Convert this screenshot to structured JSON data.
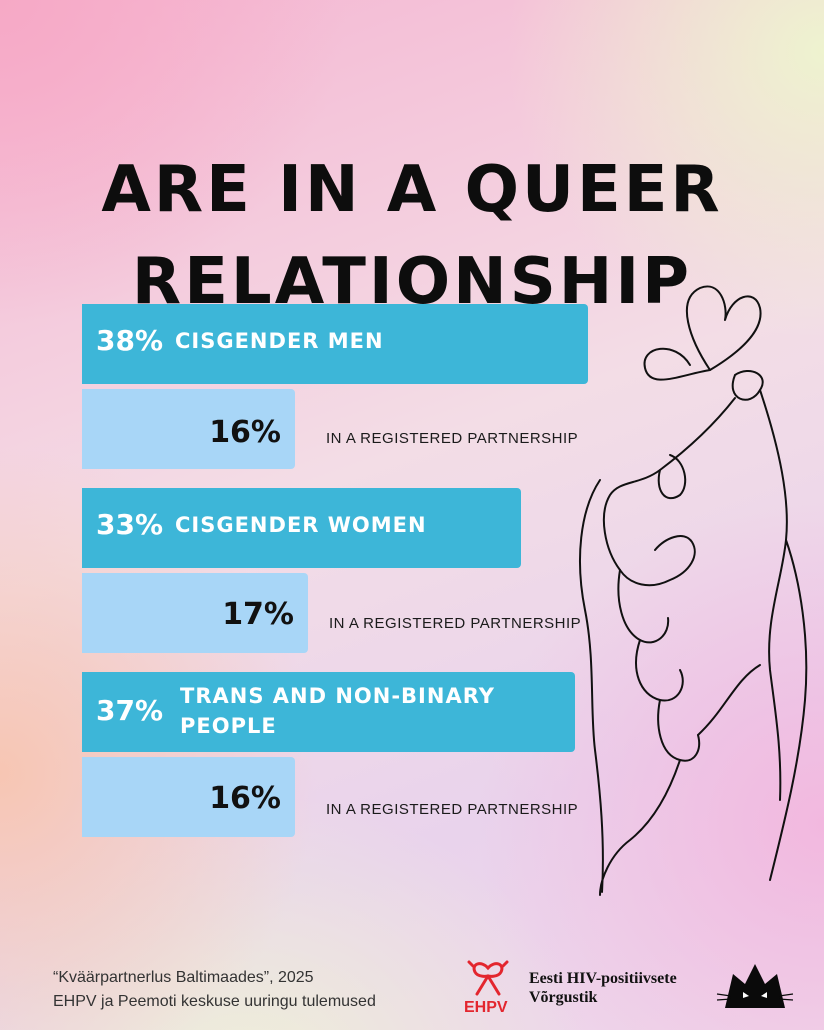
{
  "title_lines": [
    "ARE IN A QUEER",
    "RELATIONSHIP"
  ],
  "chart_data": {
    "type": "bar",
    "title": "ARE IN A QUEER RELATIONSHIP",
    "unit": "%",
    "categories": [
      "CISGENDER MEN",
      "CISGENDER WOMEN",
      "TRANS AND NON-BINARY PEOPLE"
    ],
    "series": [
      {
        "name": "",
        "values": [
          38,
          33,
          37
        ]
      },
      {
        "name": "IN A REGISTERED PARTNERSHIP",
        "values": [
          16,
          17,
          16
        ]
      }
    ],
    "groups": [
      {
        "pct": "38%",
        "label_lines": [
          "CISGENDER MEN"
        ],
        "reg_pct": "16%",
        "reg_label": "IN A REGISTERED PARTNERSHIP"
      },
      {
        "pct": "33%",
        "label_lines": [
          "CISGENDER WOMEN"
        ],
        "reg_pct": "17%",
        "reg_label": "IN A REGISTERED PARTNERSHIP"
      },
      {
        "pct": "37%",
        "label_lines": [
          "TRANS AND NON-BINARY",
          "PEOPLE"
        ],
        "reg_pct": "16%",
        "reg_label": "IN A REGISTERED PARTNERSHIP"
      }
    ]
  },
  "footer": {
    "source_lines": [
      "“Kväärpartnerlus Baltimaades”, 2025",
      "EHPV ja Peemoti keskuse uuringu tulemused"
    ],
    "logo1_text": "EHPV",
    "org_lines": [
      "Eesti HIV-positiivsete",
      "Võrgustik"
    ]
  },
  "colors": {
    "main_bar": "#3db6d8",
    "reg_bar": "#a8d6f7",
    "title": "#0d0d0d",
    "ehpv_red": "#e3262e"
  },
  "icons": [
    "heart-hand-line-art-icon",
    "ehpv-ribbon-logo-icon",
    "cat-face-logo-icon"
  ]
}
